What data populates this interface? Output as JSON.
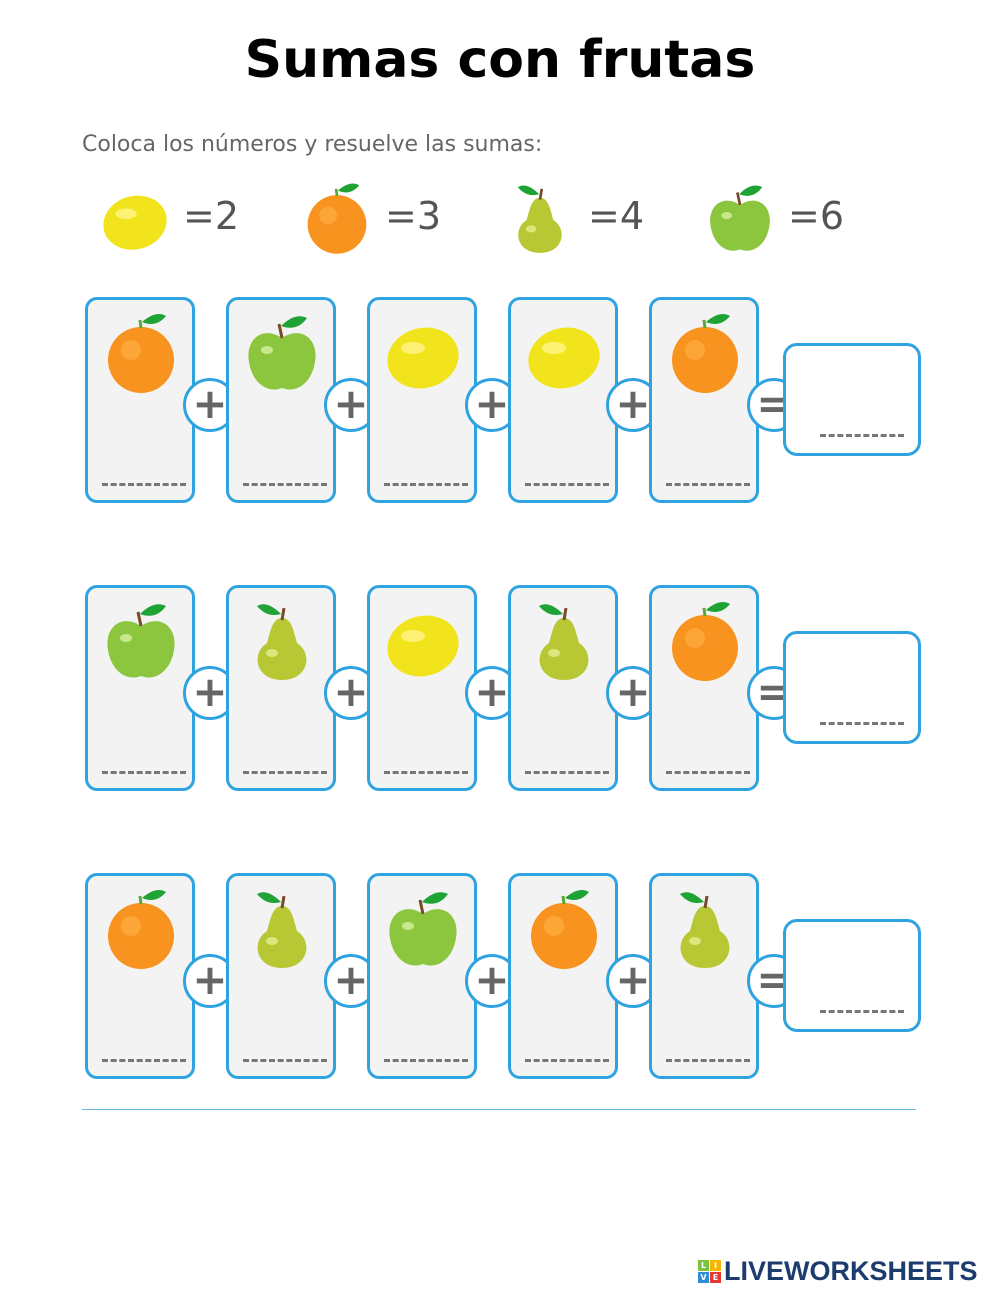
{
  "title": "Sumas con frutas",
  "instructions": "Coloca los números y resuelve las sumas:",
  "legend": [
    {
      "fruit": "lemon",
      "label": "=2"
    },
    {
      "fruit": "orange",
      "label": "=3"
    },
    {
      "fruit": "pear",
      "label": "=4"
    },
    {
      "fruit": "apple",
      "label": "=6"
    }
  ],
  "rows": [
    {
      "fruits": [
        "orange",
        "apple",
        "lemon",
        "lemon",
        "orange"
      ]
    },
    {
      "fruits": [
        "apple",
        "pear",
        "lemon",
        "pear",
        "orange"
      ]
    },
    {
      "fruits": [
        "orange",
        "pear",
        "apple",
        "orange",
        "pear"
      ]
    }
  ],
  "operators": {
    "plus": "+",
    "equals": "="
  },
  "colors": {
    "border": "#2ea3e0",
    "orange": "#f7931e",
    "apple": "#8cc63f",
    "lemon": "#f2e41c",
    "pear": "#b8c834",
    "leaf": "#1fa335"
  },
  "logo": {
    "text": "LIVEWORKSHEETS",
    "blocks": [
      "L",
      "I",
      "V",
      "E"
    ]
  }
}
